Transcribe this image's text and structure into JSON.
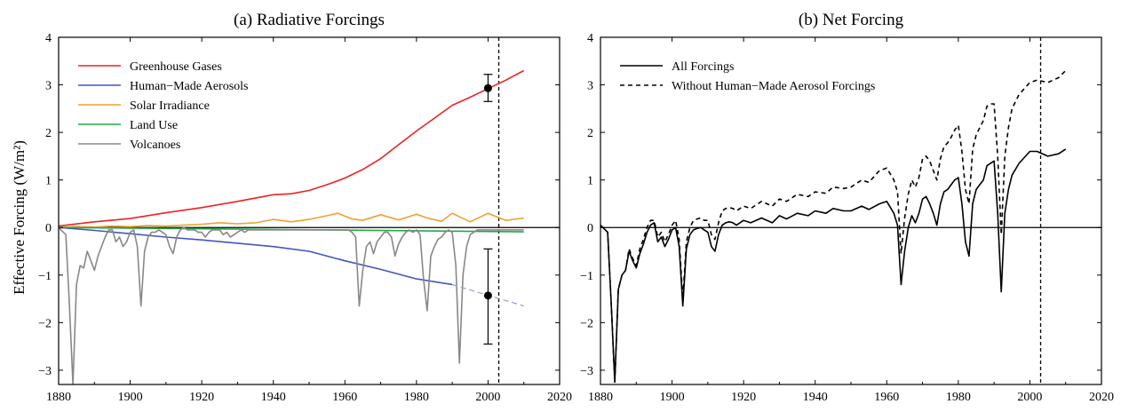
{
  "shared_ylabel": "Effective Forcing (W/m²)",
  "chart_data": [
    {
      "id": "a",
      "type": "line",
      "title": "(a)  Radiative Forcings",
      "xlim": [
        1880,
        2020
      ],
      "ylim": [
        -3.3,
        4
      ],
      "xticks": [
        1880,
        1900,
        1920,
        1940,
        1960,
        1980,
        2000,
        2020
      ],
      "yticks": [
        -3,
        -2,
        -1,
        0,
        1,
        2,
        3,
        4
      ],
      "zero_line": true,
      "vline_x": 2003,
      "legend_position": "top-left",
      "series": [
        {
          "name": "Greenhouse Gases",
          "color": "#ee2222",
          "x": [
            1880,
            1890,
            1900,
            1910,
            1920,
            1930,
            1940,
            1945,
            1950,
            1955,
            1960,
            1965,
            1970,
            1975,
            1980,
            1985,
            1990,
            1995,
            2000,
            2005,
            2010
          ],
          "y": [
            0.03,
            0.12,
            0.19,
            0.31,
            0.42,
            0.55,
            0.69,
            0.71,
            0.78,
            0.9,
            1.04,
            1.22,
            1.45,
            1.74,
            2.03,
            2.3,
            2.57,
            2.74,
            2.92,
            3.1,
            3.3
          ]
        },
        {
          "name": "Human−Made Aerosols",
          "color": "#4455bb",
          "x": [
            1880,
            1890,
            1900,
            1910,
            1920,
            1930,
            1940,
            1950,
            1960,
            1970,
            1980,
            1990
          ],
          "y": [
            0.0,
            -0.06,
            -0.13,
            -0.2,
            -0.26,
            -0.33,
            -0.4,
            -0.5,
            -0.7,
            -0.88,
            -1.08,
            -1.2
          ]
        },
        {
          "name": "Solar Irradiance",
          "color": "#f0a030",
          "x": [
            1880,
            1885,
            1890,
            1895,
            1900,
            1905,
            1910,
            1915,
            1920,
            1925,
            1930,
            1935,
            1940,
            1945,
            1950,
            1955,
            1958,
            1962,
            1965,
            1970,
            1975,
            1980,
            1983,
            1987,
            1990,
            1995,
            2000,
            2005,
            2010
          ],
          "y": [
            0.0,
            0.02,
            0.01,
            0.03,
            0.02,
            0.04,
            0.03,
            0.05,
            0.07,
            0.1,
            0.08,
            0.1,
            0.17,
            0.12,
            0.17,
            0.25,
            0.3,
            0.18,
            0.15,
            0.27,
            0.16,
            0.28,
            0.2,
            0.13,
            0.3,
            0.12,
            0.3,
            0.15,
            0.2
          ]
        },
        {
          "name": "Land Use",
          "color": "#22aa44",
          "x": [
            1880,
            1940,
            2010
          ],
          "y": [
            0.0,
            -0.04,
            -0.09
          ]
        },
        {
          "name": "Volcanoes",
          "color": "#888888",
          "x": [
            1880,
            1882,
            1883,
            1884,
            1885,
            1886,
            1887,
            1888,
            1889,
            1890,
            1891,
            1892,
            1893,
            1894,
            1895,
            1896,
            1897,
            1898,
            1899,
            1900,
            1901,
            1902,
            1903,
            1904,
            1905,
            1906,
            1907,
            1908,
            1909,
            1910,
            1911,
            1912,
            1913,
            1914,
            1915,
            1916,
            1917,
            1918,
            1919,
            1920,
            1921,
            1922,
            1923,
            1924,
            1925,
            1926,
            1927,
            1928,
            1929,
            1930,
            1931,
            1932,
            1933,
            1934,
            1935,
            1936,
            1937,
            1938,
            1939,
            1940,
            1941,
            1942,
            1943,
            1944,
            1945,
            1946,
            1947,
            1948,
            1949,
            1950,
            1951,
            1952,
            1953,
            1954,
            1955,
            1956,
            1957,
            1958,
            1959,
            1960,
            1961,
            1962,
            1963,
            1964,
            1965,
            1966,
            1967,
            1968,
            1969,
            1970,
            1971,
            1972,
            1973,
            1974,
            1975,
            1976,
            1977,
            1978,
            1979,
            1980,
            1981,
            1982,
            1983,
            1984,
            1985,
            1986,
            1987,
            1988,
            1989,
            1990,
            1991,
            1992,
            1993,
            1994,
            1995,
            1996,
            1997,
            1998,
            1999,
            2000,
            2005,
            2010
          ],
          "y": [
            0.0,
            -0.15,
            -1.6,
            -3.3,
            -1.2,
            -0.8,
            -0.85,
            -0.5,
            -0.7,
            -0.9,
            -0.6,
            -0.4,
            -0.2,
            -0.05,
            -0.05,
            -0.3,
            -0.2,
            -0.4,
            -0.3,
            -0.1,
            -0.05,
            -0.4,
            -1.65,
            -0.5,
            -0.2,
            -0.1,
            -0.1,
            -0.05,
            -0.1,
            -0.15,
            -0.4,
            -0.55,
            -0.2,
            -0.05,
            0.0,
            -0.05,
            -0.05,
            -0.05,
            -0.1,
            -0.1,
            -0.2,
            -0.1,
            -0.05,
            -0.05,
            -0.05,
            -0.15,
            -0.1,
            -0.2,
            -0.15,
            -0.1,
            -0.05,
            -0.1,
            -0.05,
            -0.05,
            -0.05,
            -0.05,
            -0.05,
            -0.05,
            -0.05,
            -0.05,
            -0.05,
            -0.05,
            -0.05,
            -0.05,
            -0.05,
            -0.05,
            -0.05,
            -0.05,
            -0.05,
            -0.05,
            -0.05,
            -0.05,
            -0.05,
            -0.05,
            -0.05,
            -0.05,
            -0.05,
            -0.05,
            -0.05,
            -0.05,
            -0.05,
            -0.1,
            -0.2,
            -1.65,
            -0.9,
            -0.4,
            -0.3,
            -0.55,
            -0.3,
            -0.2,
            -0.1,
            -0.1,
            -0.2,
            -0.6,
            -0.35,
            -0.2,
            -0.1,
            -0.05,
            -0.1,
            -0.05,
            -0.15,
            -1.1,
            -1.75,
            -0.6,
            -0.4,
            -0.25,
            -0.2,
            -0.1,
            -0.05,
            -0.1,
            -0.8,
            -2.85,
            -1.0,
            -0.4,
            -0.15,
            -0.1,
            -0.05,
            -0.05,
            -0.05,
            -0.05,
            -0.05,
            -0.05
          ]
        }
      ],
      "extra_lines": [
        {
          "x": [
            1990,
            2010
          ],
          "y": [
            -1.2,
            -1.65
          ],
          "color": "#99a0dd",
          "dash": "6,4"
        }
      ],
      "error_bars": [
        {
          "x": 2000,
          "y": 2.93,
          "low": 2.65,
          "high": 3.22
        },
        {
          "x": 2000,
          "y": -1.43,
          "low": -2.45,
          "high": -0.45
        }
      ]
    },
    {
      "id": "b",
      "type": "line",
      "title": "(b)  Net Forcing",
      "xlim": [
        1880,
        2020
      ],
      "ylim": [
        -3.3,
        4
      ],
      "xticks": [
        1880,
        1900,
        1920,
        1940,
        1960,
        1980,
        2000,
        2020
      ],
      "yticks": [
        -3,
        -2,
        -1,
        0,
        1,
        2,
        3,
        4
      ],
      "zero_line": true,
      "vline_x": 2003,
      "legend_position": "top-left",
      "series": [
        {
          "name": "All Forcings",
          "color": "#000000",
          "dash": "",
          "x": [
            1880,
            1882,
            1883,
            1884,
            1885,
            1886,
            1887,
            1888,
            1889,
            1890,
            1891,
            1892,
            1893,
            1894,
            1895,
            1896,
            1897,
            1898,
            1899,
            1900,
            1901,
            1902,
            1903,
            1904,
            1905,
            1906,
            1907,
            1908,
            1909,
            1910,
            1911,
            1912,
            1913,
            1914,
            1915,
            1916,
            1917,
            1918,
            1920,
            1922,
            1925,
            1928,
            1930,
            1932,
            1935,
            1938,
            1940,
            1943,
            1945,
            1948,
            1950,
            1953,
            1955,
            1958,
            1960,
            1962,
            1963,
            1964,
            1965,
            1966,
            1967,
            1968,
            1969,
            1970,
            1971,
            1972,
            1973,
            1974,
            1975,
            1976,
            1977,
            1978,
            1979,
            1980,
            1981,
            1982,
            1983,
            1984,
            1985,
            1986,
            1987,
            1988,
            1989,
            1990,
            1991,
            1992,
            1993,
            1994,
            1995,
            1997,
            2000,
            2002,
            2005,
            2008,
            2010
          ],
          "y": [
            0.05,
            -0.1,
            -1.6,
            -3.25,
            -1.3,
            -1.0,
            -0.9,
            -0.5,
            -0.7,
            -0.85,
            -0.55,
            -0.35,
            -0.1,
            0.05,
            0.1,
            -0.3,
            -0.2,
            -0.4,
            -0.25,
            -0.05,
            0.0,
            -0.4,
            -1.65,
            -0.45,
            -0.15,
            -0.05,
            -0.02,
            0.0,
            -0.05,
            -0.1,
            -0.4,
            -0.5,
            -0.15,
            0.05,
            0.1,
            0.12,
            0.1,
            0.05,
            0.15,
            0.1,
            0.2,
            0.1,
            0.25,
            0.18,
            0.3,
            0.25,
            0.35,
            0.3,
            0.4,
            0.35,
            0.35,
            0.45,
            0.38,
            0.5,
            0.55,
            0.3,
            0.05,
            -1.2,
            -0.5,
            0.0,
            0.25,
            0.1,
            0.3,
            0.6,
            0.65,
            0.5,
            0.3,
            0.05,
            0.5,
            0.75,
            0.8,
            0.9,
            1.0,
            1.05,
            0.5,
            -0.3,
            -0.6,
            0.5,
            0.8,
            0.9,
            1.0,
            1.3,
            1.35,
            1.4,
            0.3,
            -1.35,
            0.3,
            0.8,
            1.1,
            1.35,
            1.6,
            1.6,
            1.5,
            1.55,
            1.65
          ]
        },
        {
          "name": "Without Human−Made Aerosol Forcings",
          "color": "#000000",
          "dash": "5,4",
          "x": [
            1880,
            1882,
            1883,
            1884,
            1885,
            1886,
            1887,
            1888,
            1889,
            1890,
            1891,
            1892,
            1893,
            1894,
            1895,
            1896,
            1897,
            1898,
            1899,
            1900,
            1901,
            1902,
            1903,
            1904,
            1905,
            1906,
            1907,
            1908,
            1909,
            1910,
            1911,
            1912,
            1913,
            1914,
            1915,
            1916,
            1917,
            1918,
            1920,
            1922,
            1925,
            1928,
            1930,
            1932,
            1935,
            1938,
            1940,
            1943,
            1945,
            1948,
            1950,
            1953,
            1955,
            1958,
            1960,
            1962,
            1963,
            1964,
            1965,
            1966,
            1967,
            1968,
            1969,
            1970,
            1971,
            1972,
            1973,
            1974,
            1975,
            1976,
            1977,
            1978,
            1979,
            1980,
            1981,
            1982,
            1983,
            1984,
            1985,
            1986,
            1987,
            1988,
            1989,
            1990,
            1991,
            1992,
            1993,
            1994,
            1995,
            1997,
            2000,
            2002,
            2005,
            2008,
            2010
          ],
          "y": [
            0.05,
            -0.1,
            -1.6,
            -3.25,
            -1.3,
            -1.0,
            -0.9,
            -0.45,
            -0.65,
            -0.8,
            -0.45,
            -0.25,
            0.0,
            0.15,
            0.15,
            -0.2,
            -0.1,
            -0.3,
            -0.15,
            0.05,
            0.15,
            -0.25,
            -1.5,
            -0.3,
            0.0,
            0.15,
            0.18,
            0.2,
            0.15,
            0.15,
            -0.15,
            -0.25,
            0.1,
            0.35,
            0.4,
            0.42,
            0.4,
            0.35,
            0.45,
            0.4,
            0.55,
            0.45,
            0.6,
            0.55,
            0.7,
            0.65,
            0.75,
            0.72,
            0.85,
            0.82,
            0.85,
            1.0,
            0.95,
            1.2,
            1.25,
            1.0,
            0.75,
            -0.55,
            0.2,
            0.7,
            1.0,
            0.85,
            1.05,
            1.45,
            1.5,
            1.4,
            1.2,
            1.0,
            1.45,
            1.7,
            1.78,
            1.9,
            2.05,
            2.15,
            1.6,
            0.8,
            0.5,
            1.65,
            1.95,
            2.1,
            2.25,
            2.55,
            2.6,
            2.6,
            1.5,
            -0.15,
            1.5,
            2.1,
            2.5,
            2.8,
            3.05,
            3.1,
            3.05,
            3.15,
            3.3
          ]
        }
      ],
      "extra_lines": [],
      "error_bars": []
    }
  ]
}
